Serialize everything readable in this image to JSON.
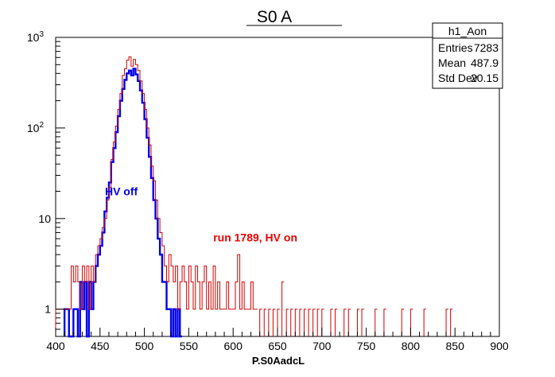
{
  "chart_data": {
    "type": "histogram",
    "title": "S0 A",
    "xlabel": "P.S0AadcL",
    "ylabel": "",
    "xlim": [
      400,
      900
    ],
    "ylim": [
      0.5,
      1000
    ],
    "yscale": "log",
    "grid": false,
    "bin_width": 2.5,
    "x_ticks": [
      400,
      450,
      500,
      550,
      600,
      650,
      700,
      750,
      800,
      850,
      900
    ],
    "y_ticks": [
      {
        "value": 1,
        "label": "1"
      },
      {
        "value": 10,
        "label": "10"
      },
      {
        "value": 100,
        "label": "10",
        "exp": "2"
      },
      {
        "value": 1000,
        "label": "10",
        "exp": "3"
      }
    ],
    "series": [
      {
        "color": "#0000ee",
        "style": "thick-step",
        "bins": [
          [
            410,
            1
          ],
          [
            412.5,
            1
          ],
          [
            415,
            0.5
          ],
          [
            417.5,
            0.5
          ],
          [
            420,
            1
          ],
          [
            422.5,
            1
          ],
          [
            425,
            0.5
          ],
          [
            427.5,
            2
          ],
          [
            430,
            1
          ],
          [
            432.5,
            2
          ],
          [
            435,
            0.5
          ],
          [
            437.5,
            2
          ],
          [
            440,
            1
          ],
          [
            442.5,
            2
          ],
          [
            445,
            3
          ],
          [
            447.5,
            4
          ],
          [
            450,
            5
          ],
          [
            452.5,
            7
          ],
          [
            455,
            12
          ],
          [
            457.5,
            17
          ],
          [
            460,
            25
          ],
          [
            462.5,
            42
          ],
          [
            465,
            60
          ],
          [
            467.5,
            90
          ],
          [
            470,
            135
          ],
          [
            472.5,
            200
          ],
          [
            475,
            270
          ],
          [
            477.5,
            340
          ],
          [
            480,
            400
          ],
          [
            482.5,
            430
          ],
          [
            485,
            380
          ],
          [
            487.5,
            450
          ],
          [
            490,
            390
          ],
          [
            492.5,
            330
          ],
          [
            495,
            260
          ],
          [
            497.5,
            190
          ],
          [
            500,
            125
          ],
          [
            502.5,
            78
          ],
          [
            505,
            48
          ],
          [
            507.5,
            28
          ],
          [
            510,
            16
          ],
          [
            512.5,
            10
          ],
          [
            515,
            6
          ],
          [
            517.5,
            4
          ],
          [
            520,
            2
          ],
          [
            522.5,
            2
          ],
          [
            525,
            1
          ],
          [
            527.5,
            1
          ],
          [
            530,
            0.5
          ],
          [
            532.5,
            1
          ],
          [
            535,
            0.5
          ],
          [
            537.5,
            1
          ],
          [
            540,
            0.5
          ]
        ]
      },
      {
        "color": "#d40000",
        "style": "thin-step",
        "bins": [
          [
            400,
            1
          ],
          [
            402.5,
            1
          ],
          [
            405,
            1
          ],
          [
            407.5,
            1
          ],
          [
            410,
            1
          ],
          [
            412.5,
            1
          ],
          [
            415,
            1
          ],
          [
            417.5,
            3
          ],
          [
            420,
            2
          ],
          [
            422.5,
            3
          ],
          [
            425,
            2
          ],
          [
            427.5,
            1
          ],
          [
            430,
            3
          ],
          [
            432.5,
            2
          ],
          [
            435,
            3
          ],
          [
            437.5,
            1
          ],
          [
            440,
            3
          ],
          [
            442.5,
            2
          ],
          [
            445,
            4
          ],
          [
            447.5,
            5
          ],
          [
            450,
            6
          ],
          [
            452.5,
            8
          ],
          [
            455,
            10
          ],
          [
            457.5,
            16
          ],
          [
            460,
            22
          ],
          [
            462.5,
            45
          ],
          [
            465,
            70
          ],
          [
            467.5,
            105
          ],
          [
            470,
            160
          ],
          [
            472.5,
            240
          ],
          [
            475,
            380
          ],
          [
            477.5,
            450
          ],
          [
            480,
            560
          ],
          [
            482.5,
            610
          ],
          [
            485,
            480
          ],
          [
            487.5,
            570
          ],
          [
            490,
            500
          ],
          [
            492.5,
            430
          ],
          [
            495,
            330
          ],
          [
            497.5,
            240
          ],
          [
            500,
            160
          ],
          [
            502.5,
            100
          ],
          [
            505,
            65
          ],
          [
            507.5,
            38
          ],
          [
            510,
            26
          ],
          [
            512.5,
            16
          ],
          [
            515,
            10
          ],
          [
            517.5,
            7
          ],
          [
            520,
            5
          ],
          [
            522.5,
            3
          ],
          [
            525,
            2
          ],
          [
            527.5,
            4
          ],
          [
            530,
            3
          ],
          [
            532.5,
            2
          ],
          [
            535,
            3
          ],
          [
            537.5,
            1
          ],
          [
            540,
            2
          ],
          [
            542.5,
            3
          ],
          [
            545,
            2
          ],
          [
            547.5,
            1
          ],
          [
            550,
            3
          ],
          [
            552.5,
            2
          ],
          [
            555,
            1
          ],
          [
            557.5,
            3
          ],
          [
            560,
            2
          ],
          [
            562.5,
            1
          ],
          [
            565,
            2
          ],
          [
            567.5,
            3
          ],
          [
            570,
            1
          ],
          [
            572.5,
            2
          ],
          [
            575,
            1
          ],
          [
            577.5,
            3
          ],
          [
            580,
            1
          ],
          [
            582.5,
            2
          ],
          [
            585,
            1
          ],
          [
            587.5,
            1
          ],
          [
            590,
            1
          ],
          [
            592.5,
            2
          ],
          [
            595,
            1
          ],
          [
            597.5,
            1
          ],
          [
            600,
            1
          ],
          [
            602.5,
            2
          ],
          [
            605,
            4
          ],
          [
            607.5,
            1
          ],
          [
            610,
            2
          ],
          [
            612.5,
            1
          ],
          [
            615,
            1
          ],
          [
            617.5,
            1
          ],
          [
            620,
            2
          ],
          [
            622.5,
            1
          ],
          [
            625,
            1
          ],
          [
            630,
            1
          ],
          [
            635,
            1
          ],
          [
            640,
            1
          ],
          [
            645,
            1
          ],
          [
            650,
            1
          ],
          [
            655,
            2
          ],
          [
            660,
            1
          ],
          [
            665,
            1
          ],
          [
            670,
            1
          ],
          [
            675,
            1
          ],
          [
            680,
            1
          ],
          [
            685,
            1
          ],
          [
            690,
            1
          ],
          [
            695,
            1
          ],
          [
            700,
            1
          ],
          [
            710,
            1
          ],
          [
            715,
            1
          ],
          [
            725,
            1
          ],
          [
            730,
            1
          ],
          [
            740,
            1
          ],
          [
            745,
            1
          ],
          [
            760,
            1
          ],
          [
            770,
            1
          ],
          [
            790,
            1
          ],
          [
            800,
            1
          ],
          [
            815,
            1
          ],
          [
            840,
            1
          ],
          [
            845,
            1
          ]
        ]
      }
    ],
    "annotations": [
      {
        "text": "HV off",
        "color": "#0000ee",
        "x": 474,
        "y": 18
      },
      {
        "text": "run 1789, HV on",
        "color": "#ee0000",
        "x": 625,
        "y": 5.6
      }
    ],
    "legend": "none",
    "stats_box": {
      "name": "h1_Aon",
      "rows": [
        {
          "label": "Entries",
          "value": "7283"
        },
        {
          "label": "Mean",
          "value": "487.9"
        },
        {
          "label": "Std Dev",
          "value": "20.15"
        }
      ]
    }
  }
}
